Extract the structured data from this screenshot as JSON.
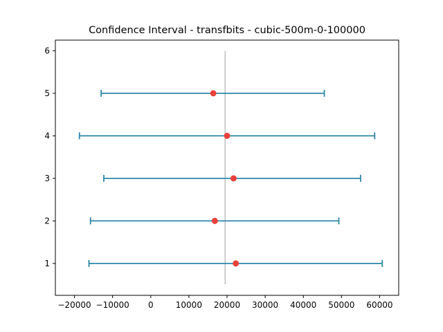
{
  "chart_data": {
    "type": "errorbar",
    "title": "Confidence Interval - transfbits - cubic-500m-0-100000",
    "xlabel": "",
    "ylabel": "",
    "xlim": [
      -25000,
      65000
    ],
    "ylim": [
      0.25,
      6.25
    ],
    "xticks": [
      -20000,
      -10000,
      0,
      10000,
      20000,
      30000,
      40000,
      50000,
      60000
    ],
    "xtick_labels": [
      "−20000",
      "−10000",
      "0",
      "10000",
      "20000",
      "30000",
      "40000",
      "50000",
      "60000"
    ],
    "yticks": [
      1,
      2,
      3,
      4,
      5,
      6
    ],
    "ytick_labels": [
      "1",
      "2",
      "3",
      "4",
      "5",
      "6"
    ],
    "reference_line": {
      "x": 19500,
      "y_range": [
        0.25,
        6.0
      ],
      "color": "#bfbfbf"
    },
    "intervals": [
      {
        "y": 1,
        "low": -16200,
        "high": 60700,
        "mean": 22300
      },
      {
        "y": 2,
        "low": -15800,
        "high": 49300,
        "mean": 16800
      },
      {
        "y": 3,
        "low": -12300,
        "high": 55000,
        "mean": 21700
      },
      {
        "y": 4,
        "low": -18700,
        "high": 58700,
        "mean": 20000
      },
      {
        "y": 5,
        "low": -13000,
        "high": 45500,
        "mean": 16400
      }
    ],
    "grid": false,
    "legend": "none",
    "colors": {
      "interval": "#2a87a8",
      "mean": "#e8403a",
      "reference": "#bfbfbf"
    }
  }
}
